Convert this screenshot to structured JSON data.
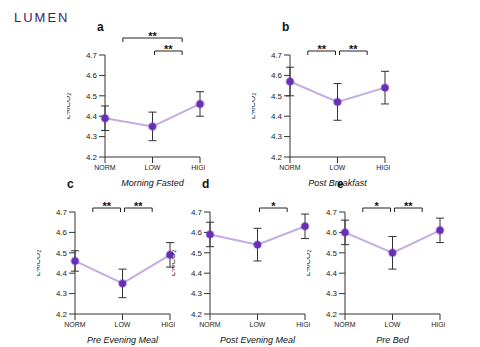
{
  "logo": "LUMEN",
  "chart_data": [
    {
      "type": "line",
      "panel_label": "a",
      "title": "Morning Fasted",
      "y_label": "L%CO₂",
      "categories": [
        "NORM",
        "LOW",
        "HIGH"
      ],
      "values": [
        4.39,
        4.35,
        4.46
      ],
      "errors": [
        0.06,
        0.07,
        0.06
      ],
      "color": "#6a2fb8",
      "marker": "circle",
      "ylim": [
        4.2,
        4.7
      ],
      "yticks": [
        4.2,
        4.3,
        4.4,
        4.5,
        4.6,
        4.7
      ],
      "grid": false,
      "annotations": [
        {
          "from": "NORM",
          "to": "HIGH",
          "text": "**"
        },
        {
          "from": "LOW",
          "to": "HIGH",
          "text": "**"
        }
      ]
    },
    {
      "type": "line",
      "panel_label": "b",
      "title": "Post Breakfast",
      "y_label": "L%CO₂",
      "categories": [
        "NORM",
        "LOW",
        "HIGH"
      ],
      "values": [
        4.57,
        4.47,
        4.54
      ],
      "errors": [
        0.07,
        0.09,
        0.08
      ],
      "color": "#6a2fb8",
      "marker": "circle",
      "ylim": [
        4.2,
        4.7
      ],
      "yticks": [
        4.2,
        4.3,
        4.4,
        4.5,
        4.6,
        4.7
      ],
      "grid": false,
      "annotations": [
        {
          "from": "NORM",
          "to": "LOW",
          "text": "**"
        },
        {
          "from": "LOW",
          "to": "HIGH",
          "text": "**"
        }
      ]
    },
    {
      "type": "line",
      "panel_label": "c",
      "title": "Pre Evening Meal",
      "y_label": "L%CO₂",
      "categories": [
        "NORM",
        "LOW",
        "HIGH"
      ],
      "values": [
        4.46,
        4.35,
        4.49
      ],
      "errors": [
        0.05,
        0.07,
        0.06
      ],
      "color": "#6a2fb8",
      "marker": "circle",
      "ylim": [
        4.2,
        4.7
      ],
      "yticks": [
        4.2,
        4.3,
        4.4,
        4.5,
        4.6,
        4.7
      ],
      "grid": false,
      "annotations": [
        {
          "from": "NORM",
          "to": "LOW",
          "text": "**"
        },
        {
          "from": "LOW",
          "to": "HIGH",
          "text": "**"
        }
      ]
    },
    {
      "type": "line",
      "panel_label": "d",
      "title": "Post Evening Meal",
      "y_label": "L%CO₂",
      "categories": [
        "NORM",
        "LOW",
        "HIGH"
      ],
      "values": [
        4.59,
        4.54,
        4.63
      ],
      "errors": [
        0.06,
        0.08,
        0.06
      ],
      "color": "#6a2fb8",
      "marker": "circle",
      "ylim": [
        4.2,
        4.7
      ],
      "yticks": [
        4.2,
        4.3,
        4.4,
        4.5,
        4.6,
        4.7
      ],
      "grid": false,
      "annotations": [
        {
          "from": "LOW",
          "to": "HIGH",
          "text": "*"
        }
      ]
    },
    {
      "type": "line",
      "panel_label": "e",
      "title": "Pre Bed",
      "y_label": "L%CO₂",
      "categories": [
        "NORM",
        "LOW",
        "HIGH"
      ],
      "values": [
        4.6,
        4.5,
        4.61
      ],
      "errors": [
        0.06,
        0.08,
        0.06
      ],
      "color": "#6a2fb8",
      "marker": "circle",
      "ylim": [
        4.2,
        4.7
      ],
      "yticks": [
        4.2,
        4.3,
        4.4,
        4.5,
        4.6,
        4.7
      ],
      "grid": false,
      "annotations": [
        {
          "from": "NORM",
          "to": "LOW",
          "text": "*"
        },
        {
          "from": "LOW",
          "to": "HIGH",
          "text": "**"
        }
      ]
    }
  ]
}
